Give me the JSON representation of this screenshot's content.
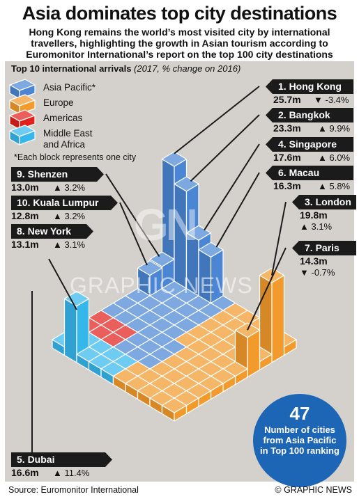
{
  "header": {
    "title": "Asia dominates top city destinations",
    "subtitle": "Hong Kong remains the world’s most visited city by international travellers, highlighting the growth in Asian tourism according to Euromonitor International’s report on the top 100 city destinations"
  },
  "chart_heading": {
    "bold": "Top 10 international arrivals",
    "italic": "(2017, % change on 2016)"
  },
  "legend": {
    "items": [
      {
        "label": "Asia Pacific*",
        "color": "#4a86d4"
      },
      {
        "label": "Europe",
        "color": "#f39a2c"
      },
      {
        "label": "Americas",
        "color": "#e2211c"
      },
      {
        "label": "Middle East and Africa",
        "color": "#36b7ec"
      }
    ],
    "footnote": "*Each block represents one city"
  },
  "chart_data": {
    "type": "bar",
    "title": "Top 10 international arrivals",
    "subtitle": "(2017, % change on 2016)",
    "unit": "million arrivals",
    "series": [
      {
        "name": "Asia Pacific*",
        "color": "#4a86d4",
        "count": 47
      },
      {
        "name": "Europe",
        "color": "#f39a2c"
      },
      {
        "name": "Americas",
        "color": "#e2211c"
      },
      {
        "name": "Middle East and Africa",
        "color": "#36b7ec"
      }
    ],
    "cities": [
      {
        "rank": 1,
        "label": "1. Hong Kong",
        "value": 25.7,
        "value_label": "25.7m",
        "change": -3.4,
        "change_label": "-3.4%",
        "region": "Asia Pacific*"
      },
      {
        "rank": 2,
        "label": "2. Bangkok",
        "value": 23.3,
        "value_label": "23.3m",
        "change": 9.9,
        "change_label": "9.9%",
        "region": "Asia Pacific*"
      },
      {
        "rank": 3,
        "label": "3. London",
        "value": 19.8,
        "value_label": "19.8m",
        "change": 3.1,
        "change_label": "3.1%",
        "region": "Europe"
      },
      {
        "rank": 4,
        "label": "4. Singapore",
        "value": 17.6,
        "value_label": "17.6m",
        "change": 6.0,
        "change_label": "6.0%",
        "region": "Asia Pacific*"
      },
      {
        "rank": 5,
        "label": "5. Dubai",
        "value": 16.6,
        "value_label": "16.6m",
        "change": 11.4,
        "change_label": "11.4%",
        "region": "Middle East and Africa"
      },
      {
        "rank": 6,
        "label": "6. Macau",
        "value": 16.3,
        "value_label": "16.3m",
        "change": 5.8,
        "change_label": "5.8%",
        "region": "Asia Pacific*"
      },
      {
        "rank": 7,
        "label": "7. Paris",
        "value": 14.3,
        "value_label": "14.3m",
        "change": -0.7,
        "change_label": "-0.7%",
        "region": "Europe"
      },
      {
        "rank": 8,
        "label": "8. New York",
        "value": 13.1,
        "value_label": "13.1m",
        "change": 3.1,
        "change_label": "3.1%",
        "region": "Americas"
      },
      {
        "rank": 9,
        "label": "9. Shenzen",
        "value": 13.0,
        "value_label": "13.0m",
        "change": 3.2,
        "change_label": "3.2%",
        "region": "Asia Pacific*"
      },
      {
        "rank": 10,
        "label": "10. Kuala Lumpur",
        "value": 12.8,
        "value_label": "12.8m",
        "change": 3.2,
        "change_label": "3.2%",
        "region": "Asia Pacific*"
      }
    ]
  },
  "callout": {
    "number": "47",
    "text": "Number of cities from Asia Pacific in Top 100 ranking"
  },
  "watermark": "GRAPHIC NEWS",
  "logo": "GN",
  "footer": {
    "source": "Source: Euromonitor International",
    "credit": "© GRAPHIC NEWS"
  }
}
